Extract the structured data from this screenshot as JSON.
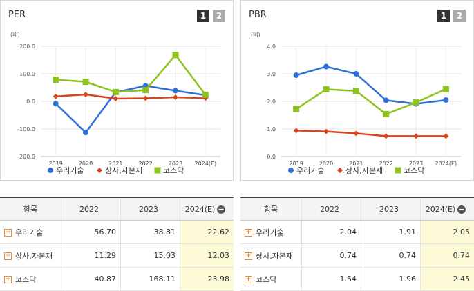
{
  "colors": {
    "series1": "#2f6fd6",
    "series2": "#d9441c",
    "series3": "#8dc21f"
  },
  "pagination": {
    "page1": "1",
    "page2": "2"
  },
  "chart_data": [
    {
      "type": "line",
      "title": "PER",
      "ylabel": "(배)",
      "x": [
        "2019",
        "2020",
        "2021",
        "2022",
        "2023",
        "2024(E)"
      ],
      "ylim": [
        -200,
        200
      ],
      "yticks": [
        "200.0",
        "100.0",
        "0.0",
        "-100.0",
        "-200.0"
      ],
      "ytick_values": [
        200,
        100,
        0,
        -100,
        -200
      ],
      "grid": true,
      "legend": "bottom",
      "series": [
        {
          "name": "우리기술",
          "marker": "circle",
          "values": [
            -8,
            -113,
            33,
            56.7,
            38.81,
            22.62
          ]
        },
        {
          "name": "상사,자본재",
          "marker": "diamond",
          "values": [
            18,
            25,
            10,
            11.29,
            15.03,
            12.03
          ]
        },
        {
          "name": "코스닥",
          "marker": "square",
          "values": [
            79,
            71,
            34,
            40.87,
            168.11,
            23.98
          ]
        }
      ]
    },
    {
      "type": "line",
      "title": "PBR",
      "ylabel": "(배)",
      "x": [
        "2019",
        "2020",
        "2021",
        "2022",
        "2023",
        "2024(E)"
      ],
      "ylim": [
        0,
        4
      ],
      "yticks": [
        "4.0",
        "3.0",
        "2.0",
        "1.0",
        "0.0"
      ],
      "ytick_values": [
        4,
        3,
        2,
        1,
        0
      ],
      "grid": true,
      "legend": "bottom",
      "series": [
        {
          "name": "우리기술",
          "marker": "circle",
          "values": [
            2.95,
            3.26,
            3.0,
            2.04,
            1.91,
            2.05
          ]
        },
        {
          "name": "상사,자본재",
          "marker": "diamond",
          "values": [
            0.94,
            0.91,
            0.84,
            0.74,
            0.74,
            0.74
          ]
        },
        {
          "name": "코스닥",
          "marker": "square",
          "values": [
            1.72,
            2.44,
            2.38,
            1.54,
            1.96,
            2.45
          ]
        }
      ]
    }
  ],
  "tables": [
    {
      "headers": [
        "항목",
        "2022",
        "2023",
        "2024(E)"
      ],
      "rows": [
        {
          "label": "우리기술",
          "values": [
            "56.70",
            "38.81",
            "22.62"
          ]
        },
        {
          "label": "상사,자본재",
          "values": [
            "11.29",
            "15.03",
            "12.03"
          ]
        },
        {
          "label": "코스닥",
          "values": [
            "40.87",
            "168.11",
            "23.98"
          ]
        }
      ]
    },
    {
      "headers": [
        "항목",
        "2022",
        "2023",
        "2024(E)"
      ],
      "rows": [
        {
          "label": "우리기술",
          "values": [
            "2.04",
            "1.91",
            "2.05"
          ]
        },
        {
          "label": "상사,자본재",
          "values": [
            "0.74",
            "0.74",
            "0.74"
          ]
        },
        {
          "label": "코스닥",
          "values": [
            "1.54",
            "1.96",
            "2.45"
          ]
        }
      ]
    }
  ]
}
